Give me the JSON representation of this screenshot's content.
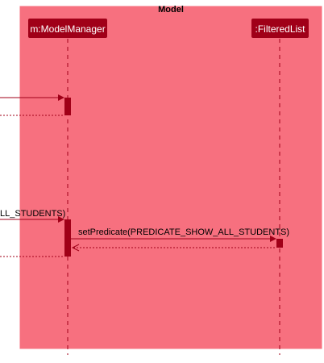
{
  "frame": {
    "title": "Model"
  },
  "participants": {
    "model_manager": "m:ModelManager",
    "filtered_list": ":FilteredList"
  },
  "messages": {
    "incoming_call": "LL_STUDENTS)",
    "set_predicate": "setPredicate(PREDICATE_SHOW_ALL_STUDENTS)"
  },
  "colors": {
    "frame_fill": "#f7707f",
    "participant_fill": "#a00018",
    "arrow": "#a00018",
    "lifeline": "#a00018"
  }
}
